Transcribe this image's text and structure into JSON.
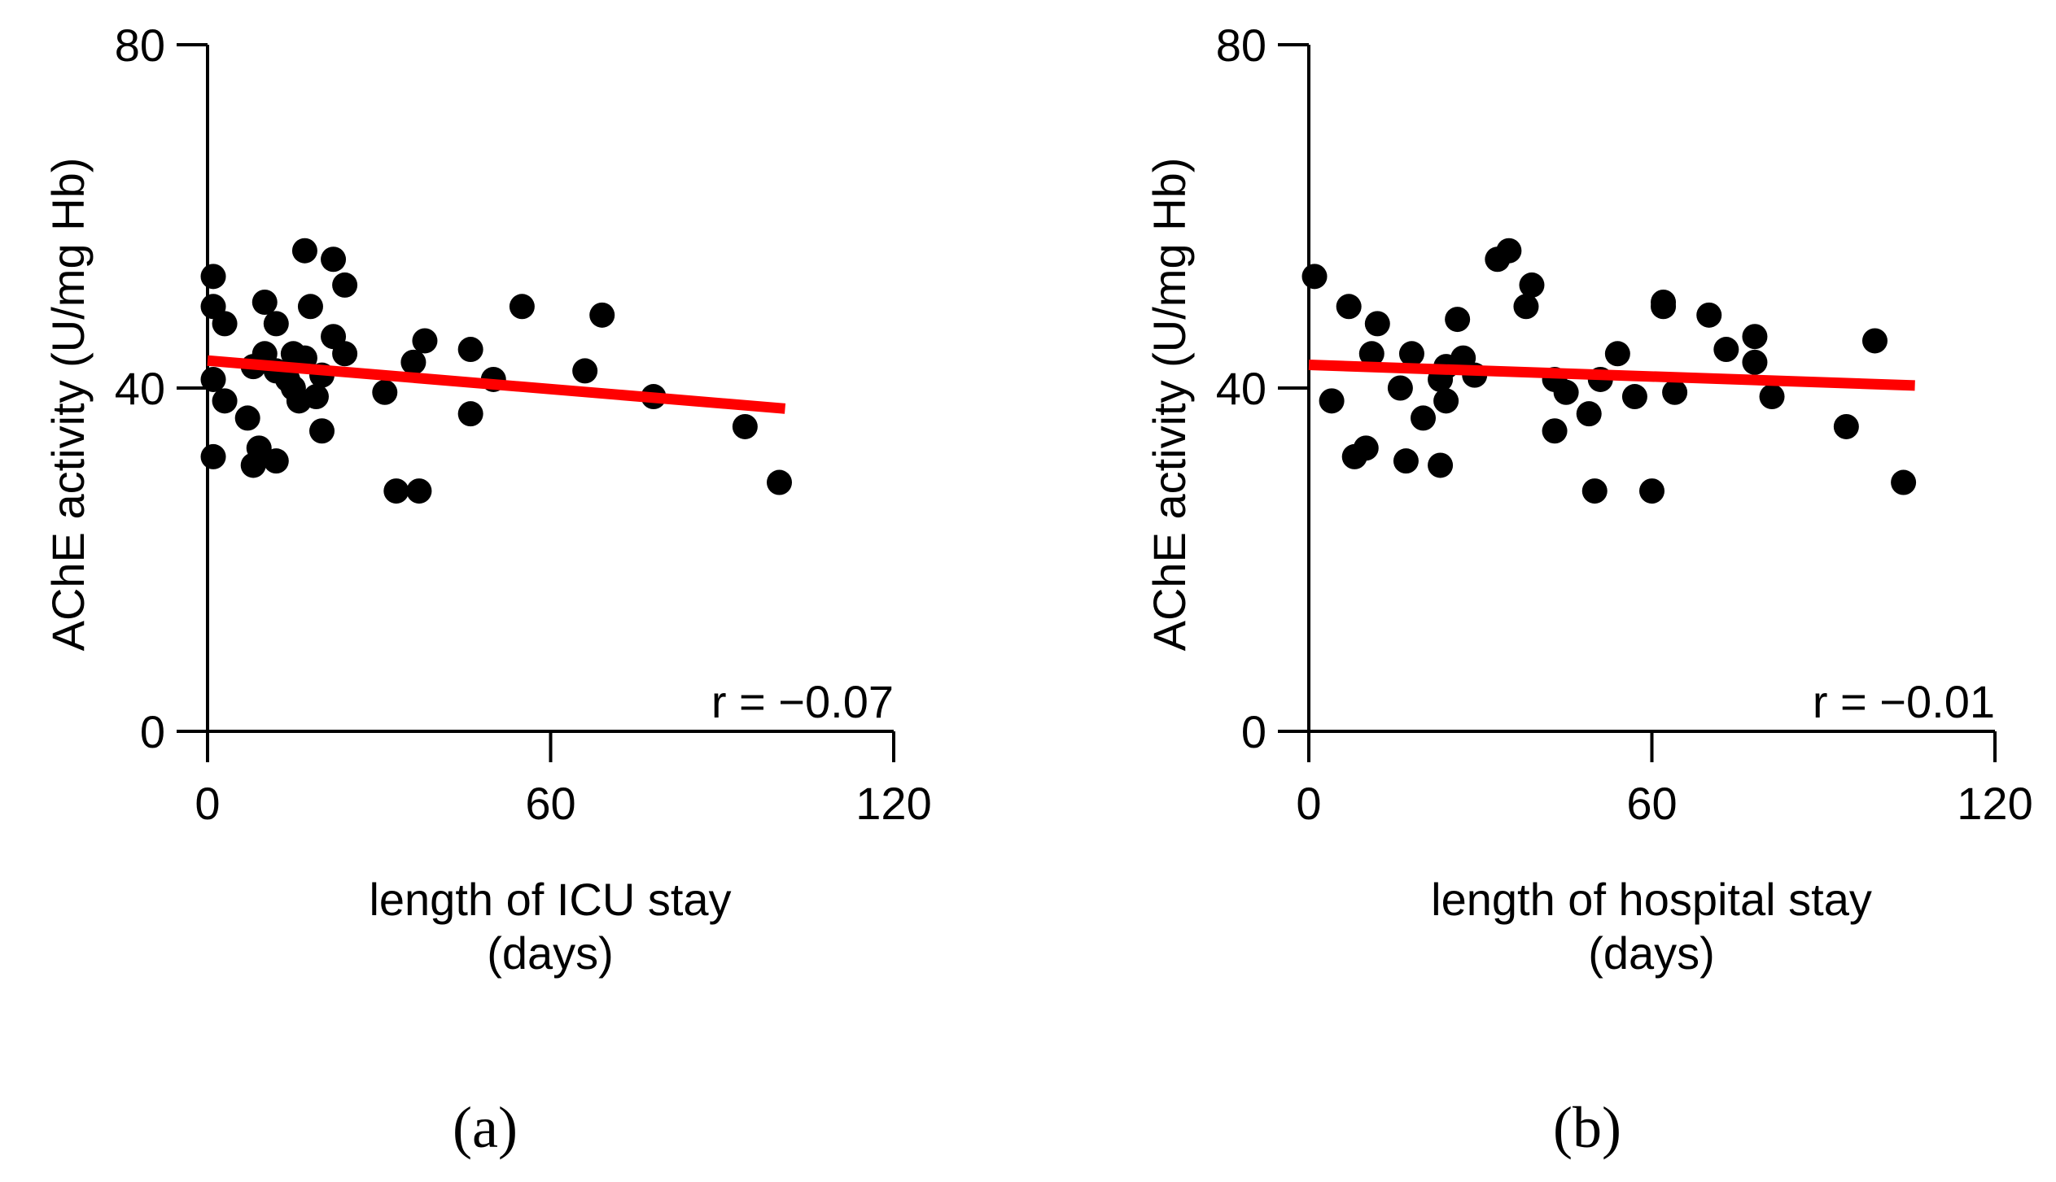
{
  "colors": {
    "points": "#000000",
    "fit_line": "#ff0000",
    "axes": "#000000",
    "background": "#ffffff"
  },
  "chart_data": [
    {
      "type": "scatter",
      "panel_label": "(a)",
      "xlabel_lines": [
        "length of ICU stay",
        "(days)"
      ],
      "ylabel": "AChE activity (U/mg Hb)",
      "xlim": [
        0,
        120
      ],
      "ylim": [
        0,
        80
      ],
      "xticks": [
        "0",
        "60",
        "120"
      ],
      "yticks": [
        "0",
        "40",
        "80"
      ],
      "annotation": "r = −0.07",
      "grid": false,
      "points": [
        {
          "x": 1,
          "y": 53
        },
        {
          "x": 1,
          "y": 49.5
        },
        {
          "x": 3,
          "y": 47.5
        },
        {
          "x": 1,
          "y": 41
        },
        {
          "x": 3,
          "y": 38.5
        },
        {
          "x": 1,
          "y": 32
        },
        {
          "x": 7,
          "y": 36.5
        },
        {
          "x": 8,
          "y": 42.5
        },
        {
          "x": 8,
          "y": 31
        },
        {
          "x": 9,
          "y": 33
        },
        {
          "x": 10,
          "y": 50
        },
        {
          "x": 10,
          "y": 44
        },
        {
          "x": 12,
          "y": 47.5
        },
        {
          "x": 12,
          "y": 42
        },
        {
          "x": 12,
          "y": 31.5
        },
        {
          "x": 14,
          "y": 41
        },
        {
          "x": 15,
          "y": 44
        },
        {
          "x": 15,
          "y": 40
        },
        {
          "x": 16,
          "y": 38.5
        },
        {
          "x": 17,
          "y": 56
        },
        {
          "x": 17,
          "y": 43.5
        },
        {
          "x": 18,
          "y": 49.5
        },
        {
          "x": 19,
          "y": 39
        },
        {
          "x": 20,
          "y": 41.5
        },
        {
          "x": 20,
          "y": 35
        },
        {
          "x": 22,
          "y": 55
        },
        {
          "x": 22,
          "y": 46
        },
        {
          "x": 24,
          "y": 52
        },
        {
          "x": 24,
          "y": 44
        },
        {
          "x": 31,
          "y": 39.5
        },
        {
          "x": 33,
          "y": 28
        },
        {
          "x": 36,
          "y": 43
        },
        {
          "x": 37,
          "y": 28
        },
        {
          "x": 38,
          "y": 45.5
        },
        {
          "x": 46,
          "y": 44.5
        },
        {
          "x": 46,
          "y": 37
        },
        {
          "x": 50,
          "y": 41
        },
        {
          "x": 55,
          "y": 49.5
        },
        {
          "x": 66,
          "y": 42
        },
        {
          "x": 69,
          "y": 48.5
        },
        {
          "x": 78,
          "y": 39
        },
        {
          "x": 94,
          "y": 35.5
        },
        {
          "x": 100,
          "y": 29
        }
      ],
      "fit_line": {
        "x": [
          0,
          101
        ],
        "y": [
          43.2,
          37.6
        ]
      }
    },
    {
      "type": "scatter",
      "panel_label": "(b)",
      "xlabel_lines": [
        "length of hospital stay",
        "(days)"
      ],
      "ylabel": "AChE activity (U/mg Hb)",
      "xlim": [
        0,
        120
      ],
      "ylim": [
        0,
        80
      ],
      "xticks": [
        "0",
        "60",
        "120"
      ],
      "yticks": [
        "0",
        "40",
        "80"
      ],
      "annotation": "r = −0.01",
      "grid": false,
      "points": [
        {
          "x": 1,
          "y": 53
        },
        {
          "x": 4,
          "y": 38.5
        },
        {
          "x": 7,
          "y": 49.5
        },
        {
          "x": 8,
          "y": 32
        },
        {
          "x": 10,
          "y": 33
        },
        {
          "x": 11,
          "y": 44
        },
        {
          "x": 12,
          "y": 47.5
        },
        {
          "x": 16,
          "y": 40
        },
        {
          "x": 17,
          "y": 31.5
        },
        {
          "x": 18,
          "y": 44
        },
        {
          "x": 20,
          "y": 36.5
        },
        {
          "x": 23,
          "y": 31
        },
        {
          "x": 23,
          "y": 41
        },
        {
          "x": 24,
          "y": 42.5
        },
        {
          "x": 24,
          "y": 38.5
        },
        {
          "x": 26,
          "y": 48
        },
        {
          "x": 27,
          "y": 43.5
        },
        {
          "x": 29,
          "y": 41.5
        },
        {
          "x": 33,
          "y": 55
        },
        {
          "x": 35,
          "y": 56
        },
        {
          "x": 38,
          "y": 49.5
        },
        {
          "x": 39,
          "y": 52
        },
        {
          "x": 43,
          "y": 41
        },
        {
          "x": 43,
          "y": 35
        },
        {
          "x": 45,
          "y": 39.5
        },
        {
          "x": 49,
          "y": 37
        },
        {
          "x": 50,
          "y": 28
        },
        {
          "x": 51,
          "y": 41
        },
        {
          "x": 54,
          "y": 44
        },
        {
          "x": 57,
          "y": 39
        },
        {
          "x": 60,
          "y": 28
        },
        {
          "x": 62,
          "y": 50
        },
        {
          "x": 62,
          "y": 49.5
        },
        {
          "x": 64,
          "y": 39.5
        },
        {
          "x": 70,
          "y": 48.5
        },
        {
          "x": 73,
          "y": 44.5
        },
        {
          "x": 78,
          "y": 46
        },
        {
          "x": 78,
          "y": 43
        },
        {
          "x": 81,
          "y": 39
        },
        {
          "x": 94,
          "y": 35.5
        },
        {
          "x": 99,
          "y": 45.5
        },
        {
          "x": 104,
          "y": 29
        }
      ],
      "fit_line": {
        "x": [
          0,
          106
        ],
        "y": [
          42.7,
          40.3
        ]
      }
    }
  ]
}
